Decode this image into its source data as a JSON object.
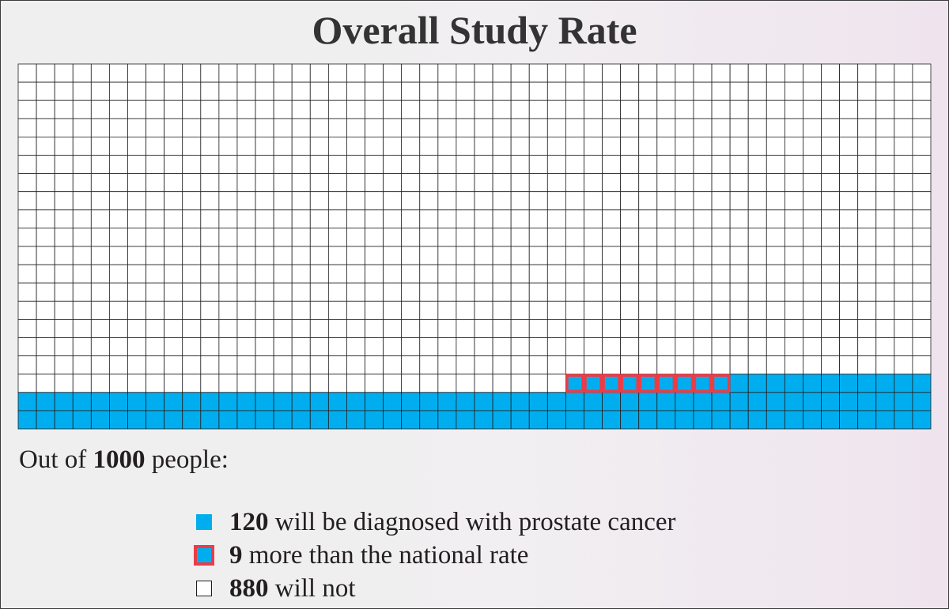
{
  "title": "Overall Study Rate",
  "intro": {
    "prefix": "Out of",
    "total": "1000",
    "suffix": "people:"
  },
  "legend": [
    {
      "count": "120",
      "text": "will be diagnosed with prostate cancer",
      "swatch": "blue"
    },
    {
      "count": "9",
      "text": "more than the national rate",
      "swatch": "red"
    },
    {
      "count": "880",
      "text": "will not",
      "swatch": "white"
    }
  ],
  "colors": {
    "affected": "#00aeef",
    "excess_outline": "#ef3b45",
    "unaffected": "#ffffff",
    "gridline": "#231f20"
  },
  "chart_data": {
    "type": "waffle",
    "title": "Overall Study Rate",
    "total": 1000,
    "columns": 50,
    "rows": 20,
    "categories": [
      "will be diagnosed with prostate cancer",
      "more than the national rate",
      "will not"
    ],
    "values": [
      120,
      9,
      880
    ]
  }
}
